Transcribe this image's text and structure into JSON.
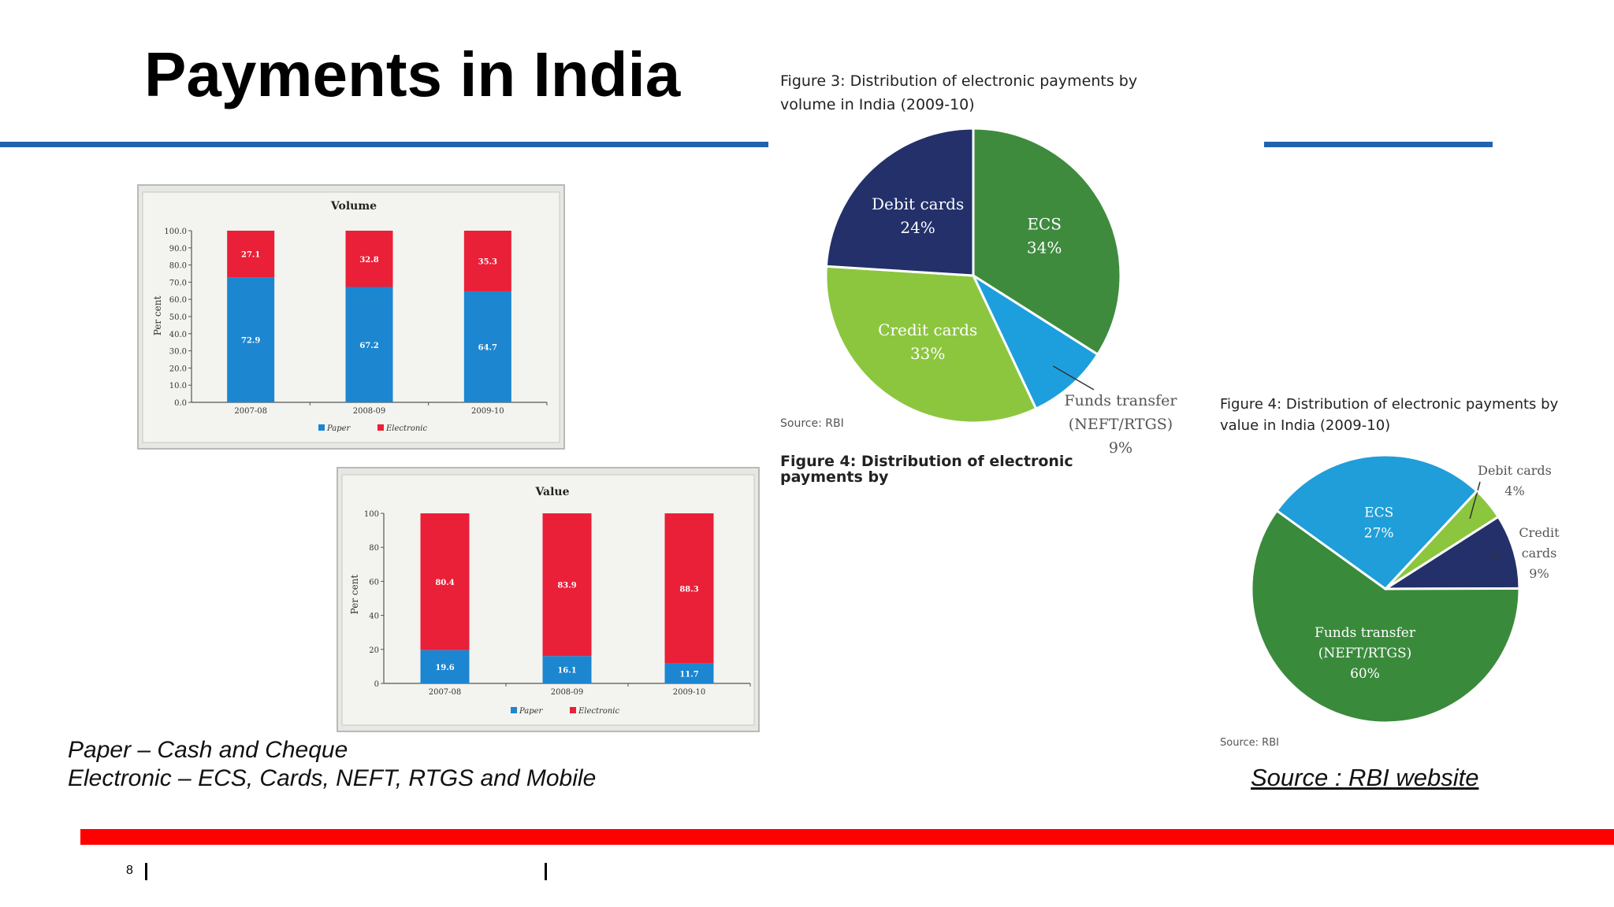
{
  "slide": {
    "title": "Payments in India",
    "notes": [
      "Paper – Cash and Cheque",
      "Electronic – ECS, Cards, NEFT, RTGS and Mobile"
    ],
    "source": "Source : RBI website",
    "page_number": "8",
    "footer_separator": "|"
  },
  "colors": {
    "rule_blue": "#1f64ad",
    "rule_red": "#ff0000",
    "paper": "#1c86d1",
    "electronic": "#ea1f38",
    "ecs_fig3": "#3f8b3e",
    "funds_fig3": "#1d9fde",
    "credit_fig3": "#8cc63f",
    "debit_fig3": "#23306a",
    "fig4_ecs": "#1f9ed9",
    "fig4_debit": "#8cc63f",
    "fig4_credit": "#23306a",
    "fig4_funds": "#3a8a3c"
  },
  "chart_data": [
    {
      "id": "volume",
      "type": "bar",
      "stacked": true,
      "title": "Volume",
      "ylabel": "Per cent",
      "ylim": [
        0,
        100
      ],
      "yticks": [
        "0.0",
        "10.0",
        "20.0",
        "30.0",
        "40.0",
        "50.0",
        "60.0",
        "70.0",
        "80.0",
        "90.0",
        "100.0"
      ],
      "categories": [
        "2007-08",
        "2008-09",
        "2009-10"
      ],
      "series": [
        {
          "name": "Paper",
          "values": [
            72.9,
            67.2,
            64.7
          ],
          "labels": [
            "72.9",
            "67.2",
            "64.7"
          ]
        },
        {
          "name": "Electronic",
          "values": [
            27.1,
            32.8,
            35.3
          ],
          "labels": [
            "27.1",
            "32.8",
            "35.3"
          ]
        }
      ],
      "legend": "bottom"
    },
    {
      "id": "value",
      "type": "bar",
      "stacked": true,
      "title": "Value",
      "ylabel": "Per cent",
      "ylim": [
        0,
        100
      ],
      "yticks": [
        "0",
        "20",
        "40",
        "60",
        "80",
        "100"
      ],
      "categories": [
        "2007-08",
        "2008-09",
        "2009-10"
      ],
      "series": [
        {
          "name": "Paper",
          "values": [
            19.6,
            16.1,
            11.7
          ],
          "labels": [
            "19.6",
            "16.1",
            "11.7"
          ]
        },
        {
          "name": "Electronic",
          "values": [
            80.4,
            83.9,
            88.3
          ],
          "labels": [
            "80.4",
            "83.9",
            "88.3"
          ]
        }
      ],
      "legend": "bottom"
    },
    {
      "id": "fig3",
      "type": "pie",
      "title_lines": [
        "Figure 3: Distribution of electronic payments by",
        "volume in India (2009-10)"
      ],
      "source": "Source: RBI",
      "cut_text": "Figure 4: Distribution of electronic payments by",
      "slices": [
        {
          "name": "ECS",
          "value": 34,
          "label": "34%"
        },
        {
          "name": "Funds transfer (NEFT/RTGS)",
          "value": 9,
          "label": "9%",
          "name_lines": [
            "Funds transfer",
            "(NEFT/RTGS)"
          ]
        },
        {
          "name": "Credit cards",
          "value": 33,
          "label": "33%"
        },
        {
          "name": "Debit cards",
          "value": 24,
          "label": "24%"
        }
      ]
    },
    {
      "id": "fig4",
      "type": "pie",
      "title_lines": [
        "Figure 4: Distribution of electronic payments by",
        "value in India (2009-10)"
      ],
      "source": "Source: RBI",
      "slices": [
        {
          "name": "Debit cards",
          "value": 4,
          "label": "4%"
        },
        {
          "name": "Credit cards",
          "value": 9,
          "label": "9%",
          "name_lines": [
            "Credit",
            "cards"
          ]
        },
        {
          "name": "Funds transfer (NEFT/RTGS)",
          "value": 60,
          "label": "60%",
          "name_lines": [
            "Funds transfer",
            "(NEFT/RTGS)"
          ]
        },
        {
          "name": "ECS",
          "value": 27,
          "label": "27%"
        }
      ]
    }
  ]
}
